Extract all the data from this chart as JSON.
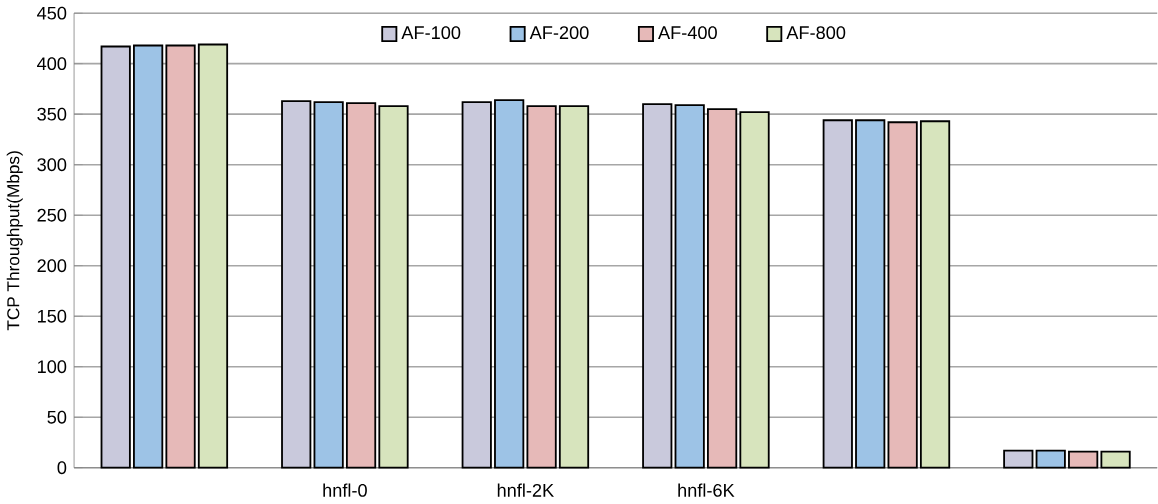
{
  "chart_data": {
    "type": "bar",
    "ylabel": "TCP Throughput(Mbps)",
    "categories": [
      null,
      "hnfl-0",
      "hnfl-2K",
      "hnfl-6K",
      null,
      null
    ],
    "series": [
      {
        "name": "AF-100",
        "color": "#c9c9dc",
        "values": [
          417,
          363,
          362,
          360,
          344,
          17
        ]
      },
      {
        "name": "AF-200",
        "color": "#9dc3e6",
        "values": [
          418,
          362,
          364,
          359,
          344,
          17
        ]
      },
      {
        "name": "AF-400",
        "color": "#e6b9b8",
        "values": [
          418,
          361,
          358,
          355,
          342,
          16
        ]
      },
      {
        "name": "AF-800",
        "color": "#d7e4bd",
        "values": [
          419,
          358,
          358,
          352,
          343,
          16
        ]
      }
    ],
    "ylim": [
      0,
      450
    ],
    "yticks": [
      0,
      50,
      100,
      150,
      200,
      250,
      300,
      350,
      400,
      450
    ],
    "grid": "y",
    "legend": "top"
  }
}
